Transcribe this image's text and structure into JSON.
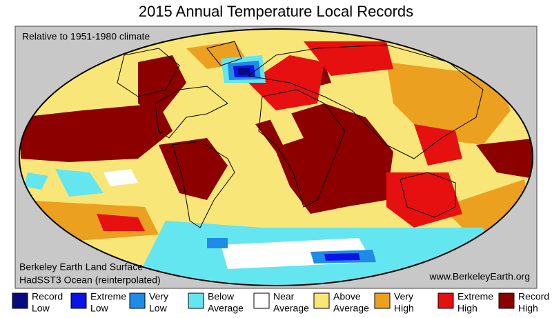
{
  "header": {
    "title": "2015 Annual Temperature Local Records"
  },
  "map": {
    "subtitle": "Relative to 1951-1980 climate",
    "sources": [
      "Berkeley Earth Land Surface",
      "HadSST3 Ocean (reinterpolated)"
    ],
    "website": "www.BerkeleyEarth.org",
    "background_color": "#c8c8c8"
  },
  "legend": {
    "items": [
      {
        "lines": [
          "Record",
          "Low"
        ],
        "color": "#0a0a80"
      },
      {
        "lines": [
          "Extreme",
          "Low"
        ],
        "color": "#0a14e6"
      },
      {
        "lines": [
          "Very",
          "Low"
        ],
        "color": "#1e8ce6"
      },
      {
        "lines": [
          "Below",
          "Average"
        ],
        "color": "#64e6f0"
      },
      {
        "lines": [
          "Near",
          "Average"
        ],
        "color": "#ffffff"
      },
      {
        "lines": [
          "Above",
          "Average"
        ],
        "color": "#f8e678"
      },
      {
        "lines": [
          "Very",
          "High"
        ],
        "color": "#eba020"
      },
      {
        "lines": [
          "Extreme",
          "High"
        ],
        "color": "#e61010"
      },
      {
        "lines": [
          "Record",
          "High"
        ],
        "color": "#8c0000"
      }
    ]
  }
}
